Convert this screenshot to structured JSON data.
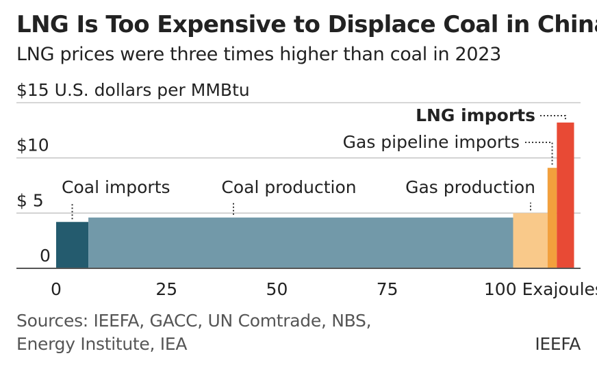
{
  "chart_data": {
    "type": "bar",
    "subtype": "variable-width supply curve",
    "title": "LNG Is Too Expensive to Displace Coal in China",
    "subtitle": "LNG prices were three times higher than coal in 2023",
    "ylabel": "$15 U.S. dollars per MMBtu",
    "xlabel": "Exajoules",
    "xlim": [
      0,
      118
    ],
    "ylim": [
      0,
      15
    ],
    "x_ticks": [
      {
        "value": 0,
        "label": "0"
      },
      {
        "value": 25,
        "label": "25"
      },
      {
        "value": 50,
        "label": "50"
      },
      {
        "value": 75,
        "label": "75"
      },
      {
        "value": 100,
        "label": "100 Exajoules"
      }
    ],
    "y_ticks": [
      {
        "value": 0,
        "label": "0"
      },
      {
        "value": 5,
        "label": "$  5"
      },
      {
        "value": 10,
        "label": "$10"
      },
      {
        "value": 15,
        "label": "$15 U.S. dollars per MMBtu"
      }
    ],
    "grid": true,
    "series": [
      {
        "name": "Coal imports",
        "x_start": 0,
        "x_end": 7.3,
        "value": 4.2,
        "color": "#245b6e",
        "label_bold": false
      },
      {
        "name": "Coal production",
        "x_start": 7.3,
        "x_end": 103.5,
        "value": 4.6,
        "color": "#7299a9",
        "label_bold": false
      },
      {
        "name": "Gas production",
        "x_start": 103.5,
        "x_end": 111.3,
        "value": 5.0,
        "color": "#f9c98a",
        "label_bold": false
      },
      {
        "name": "Gas pipeline imports",
        "x_start": 111.3,
        "x_end": 113.4,
        "value": 9.1,
        "color": "#f2a03d",
        "label_bold": false
      },
      {
        "name": "LNG imports",
        "x_start": 113.4,
        "x_end": 117.3,
        "value": 13.2,
        "color": "#e84a35",
        "label_bold": true
      }
    ]
  },
  "footer": {
    "sources_line1": "Sources: IEEFA, GACC, UN Comtrade, NBS,",
    "sources_line2": "Energy Institute, IEA",
    "credit": "IEEFA"
  }
}
